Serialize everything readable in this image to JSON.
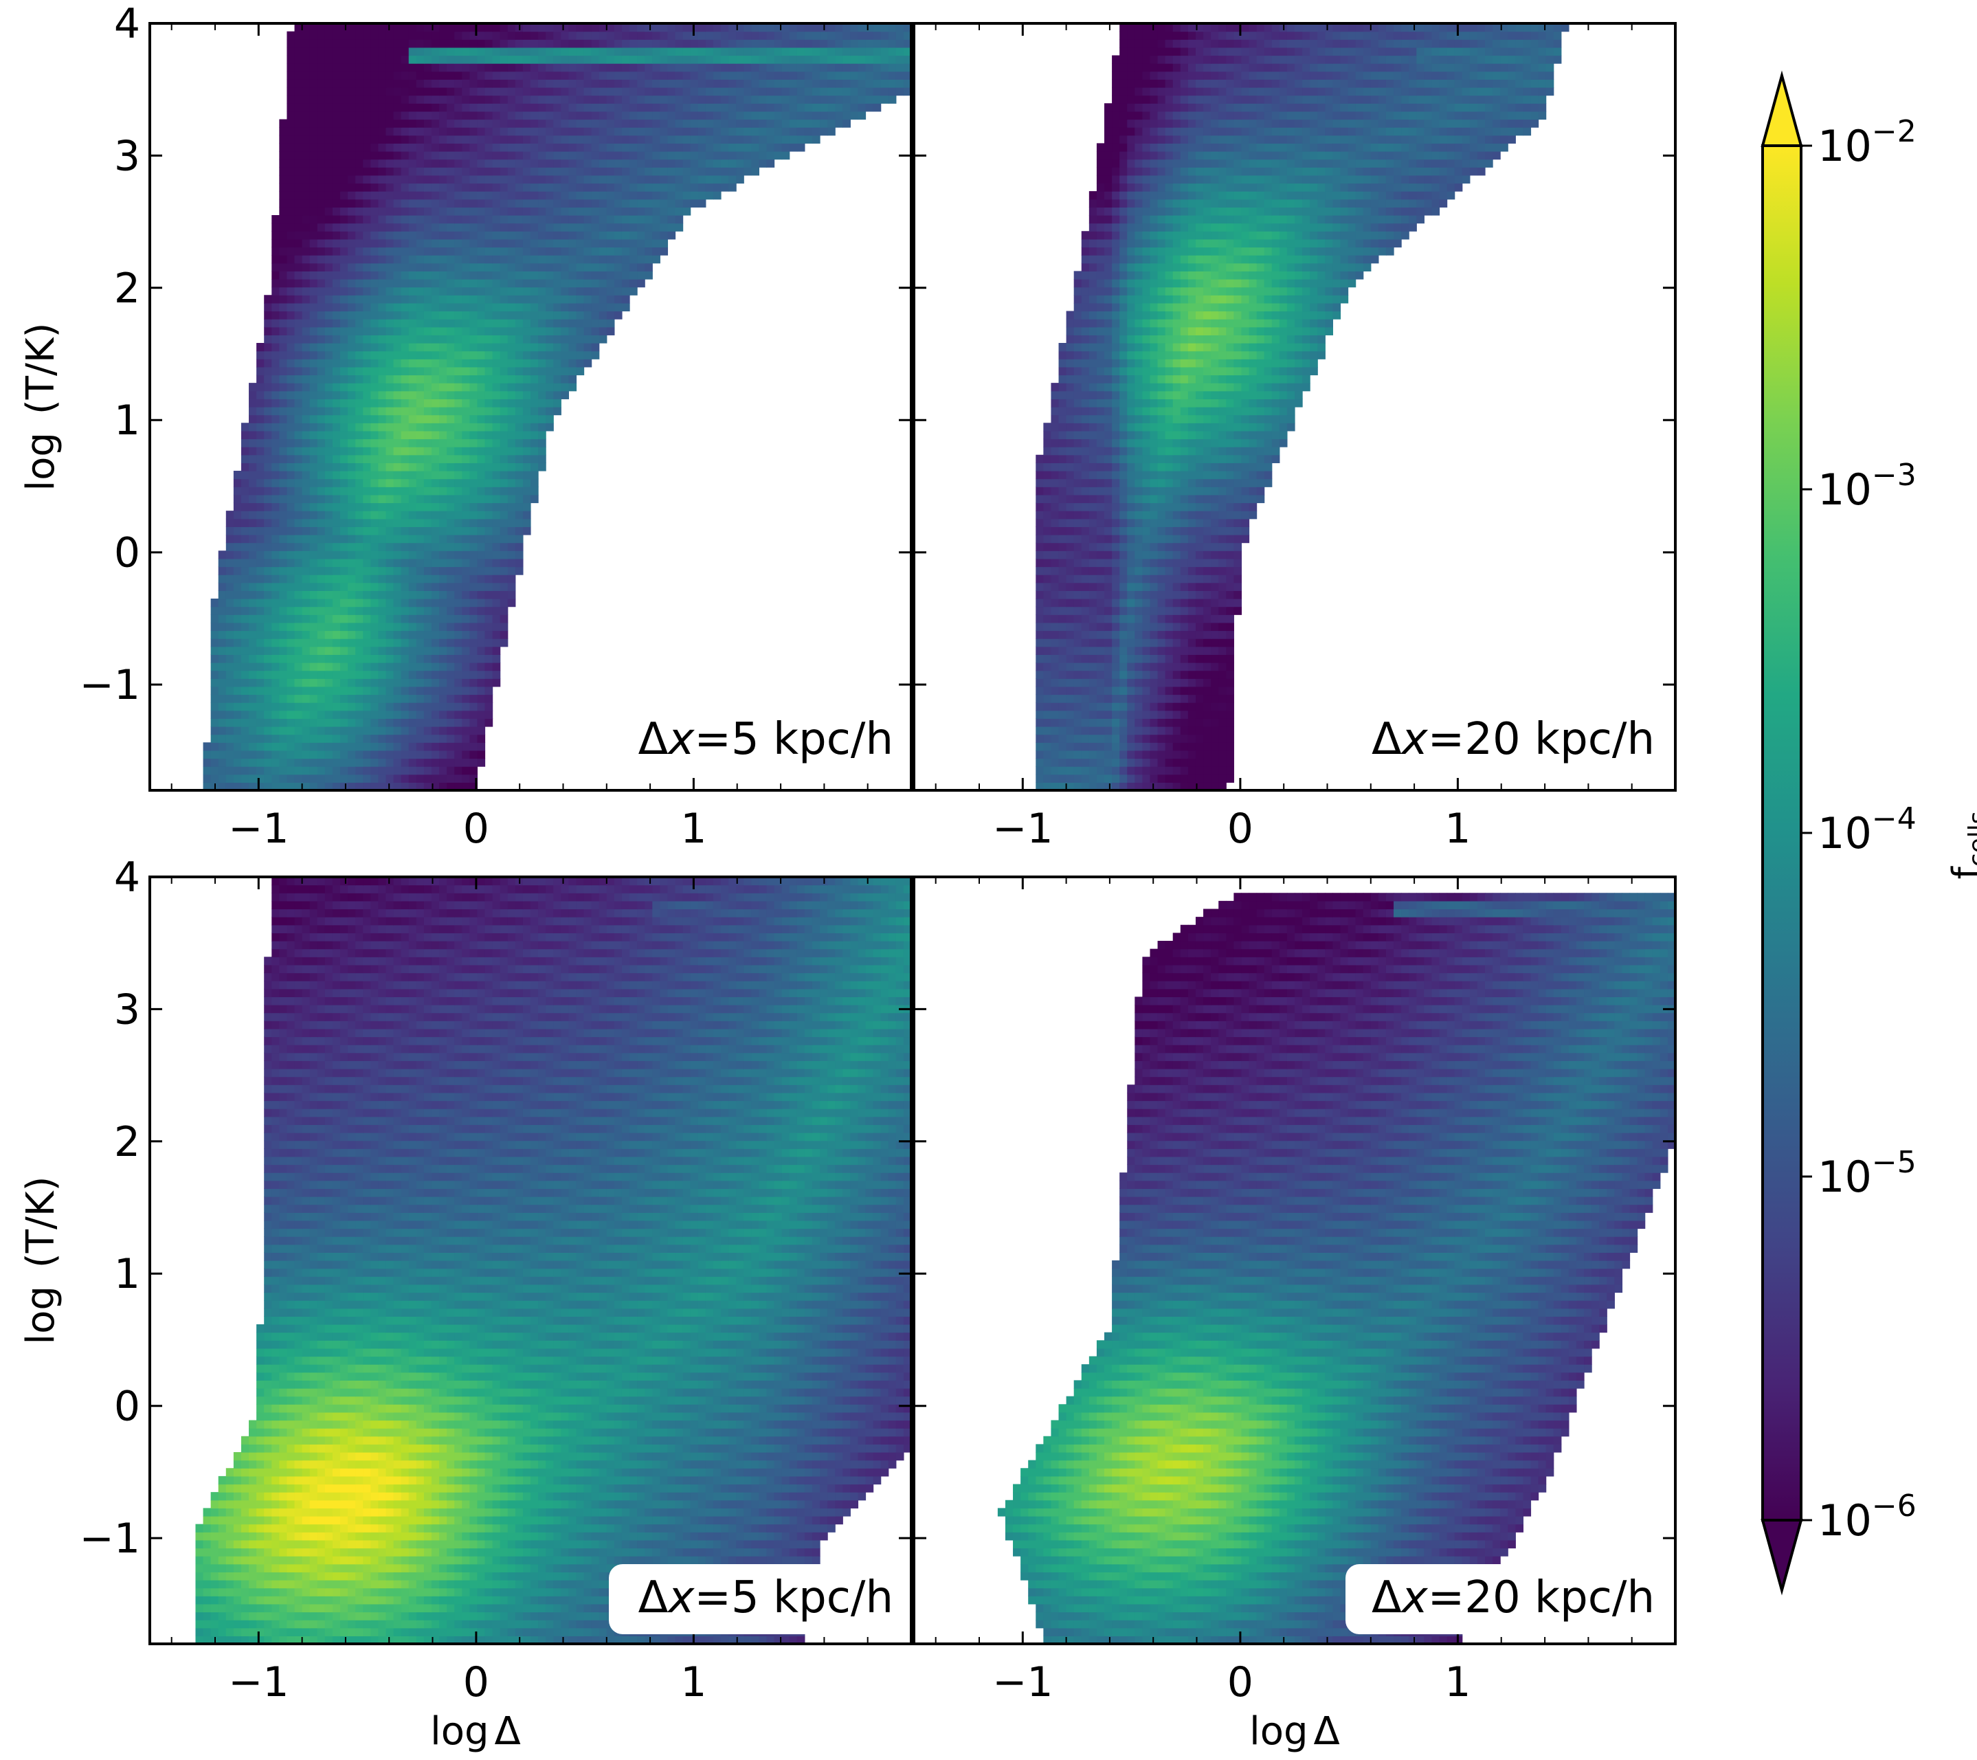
{
  "figure": {
    "y_axis_label_prefix": "log",
    "y_axis_label_unit": "(T/K)",
    "x_axis_label": "log Δ",
    "x_axis_label_parts": [
      "log",
      "Δ"
    ],
    "y_tick_labels": [
      "−1",
      "0",
      "1",
      "2",
      "3",
      "4"
    ],
    "x_tick_labels": [
      "−1",
      "0",
      "1"
    ]
  },
  "colorbar": {
    "label_main": "f",
    "label_sub": "cells",
    "colormap": "viridis",
    "scale": "log",
    "range": [
      1e-06,
      0.01
    ],
    "extend": "both",
    "tick_values": [
      1e-06,
      1e-05,
      0.0001,
      0.001,
      0.01
    ],
    "tick_labels": [
      {
        "base": "10",
        "exp": "−6"
      },
      {
        "base": "10",
        "exp": "−5"
      },
      {
        "base": "10",
        "exp": "−4"
      },
      {
        "base": "10",
        "exp": "−3"
      },
      {
        "base": "10",
        "exp": "−2"
      }
    ],
    "under_color": "#440154",
    "over_color": "#fde725"
  },
  "chart_data": [
    {
      "type": "heatmap",
      "panel": "top-left",
      "annotation": {
        "delta_symbol": "Δ",
        "var": "x",
        "text": "=5 kpc/h",
        "boxed": false
      },
      "xlabel": "",
      "ylabel": "log (T/K)",
      "xlim": [
        -1.5,
        2.0
      ],
      "ylim": [
        -1.8,
        4.0
      ],
      "x_ticks": [
        -1,
        0,
        1
      ],
      "y_ticks": [
        -1,
        0,
        1,
        2,
        3,
        4
      ],
      "ridge": [
        [
          -1.0,
          -1.8
        ],
        [
          -0.65,
          -0.6
        ],
        [
          -0.3,
          1.0
        ],
        [
          0.35,
          2.0
        ],
        [
          1.3,
          3.1
        ],
        [
          2.0,
          3.75
        ]
      ],
      "peaks": [
        {
          "x": -0.3,
          "y": 1.0,
          "log_f": -3.0
        },
        {
          "x": -0.65,
          "y": -0.7,
          "log_f": -3.3
        }
      ],
      "band": {
        "log_temperature": 3.75,
        "x_from": -0.3,
        "x_to": 2.0,
        "log_f": -4.1
      },
      "support": [
        [
          -1.25,
          -1.8
        ],
        [
          -1.2,
          -0.3
        ],
        [
          -0.95,
          2.0
        ],
        [
          -0.85,
          4.0
        ],
        [
          2.0,
          4.0
        ],
        [
          2.0,
          3.5
        ],
        [
          1.0,
          2.6
        ],
        [
          0.35,
          1.0
        ],
        [
          0.15,
          -0.5
        ],
        [
          0.0,
          -1.8
        ]
      ]
    },
    {
      "type": "heatmap",
      "panel": "top-right",
      "annotation": {
        "delta_symbol": "Δ",
        "var": "x",
        "text": "=20 kpc/h",
        "boxed": false
      },
      "xlabel": "",
      "ylabel": "",
      "xlim": [
        -1.5,
        2.0
      ],
      "ylim": [
        -1.8,
        4.0
      ],
      "x_ticks": [
        -1,
        0,
        1
      ],
      "y_ticks": [
        -1,
        0,
        1,
        2,
        3,
        4
      ],
      "ridge": [
        [
          -0.6,
          -1.8
        ],
        [
          -0.5,
          -0.3
        ],
        [
          -0.2,
          1.7
        ],
        [
          0.35,
          2.8
        ],
        [
          1.2,
          3.55
        ],
        [
          2.0,
          3.75
        ]
      ],
      "peaks": [
        {
          "x": -0.2,
          "y": 1.7,
          "log_f": -2.9
        }
      ],
      "band": {
        "log_temperature": 3.75,
        "x_from": 0.8,
        "x_to": 2.0,
        "log_f": -4.6
      },
      "support": [
        [
          -0.95,
          -1.8
        ],
        [
          -0.95,
          0.5
        ],
        [
          -0.7,
          2.5
        ],
        [
          -0.55,
          4.0
        ],
        [
          1.5,
          4.0
        ],
        [
          1.4,
          3.3
        ],
        [
          0.5,
          2.0
        ],
        [
          0.0,
          0.0
        ],
        [
          -0.05,
          -1.8
        ]
      ]
    },
    {
      "type": "heatmap",
      "panel": "bottom-left",
      "annotation": {
        "delta_symbol": "Δ",
        "var": "x",
        "text": "=5 kpc/h",
        "boxed": true
      },
      "xlabel": "log Δ",
      "ylabel": "log (T/K)",
      "xlim": [
        -1.5,
        2.0
      ],
      "ylim": [
        -1.8,
        4.0
      ],
      "x_ticks": [
        -1,
        0,
        1
      ],
      "y_ticks": [
        -1,
        0,
        1,
        2,
        3,
        4
      ],
      "ridge": [
        [
          -1.0,
          -1.0
        ],
        [
          -0.5,
          -0.6
        ],
        [
          0.0,
          -0.3
        ],
        [
          0.6,
          0.1
        ],
        [
          1.3,
          1.2
        ],
        [
          2.0,
          3.5
        ]
      ],
      "peaks": [
        {
          "x": -0.6,
          "y": -0.7,
          "log_f": -2.0
        }
      ],
      "band": {
        "log_temperature": 3.75,
        "x_from": 0.8,
        "x_to": 2.0,
        "log_f": -5.0
      },
      "support": [
        [
          -1.3,
          -1.8
        ],
        [
          -1.3,
          -1.0
        ],
        [
          -1.0,
          0.0
        ],
        [
          -0.95,
          4.0
        ],
        [
          2.0,
          4.0
        ],
        [
          2.0,
          -0.3
        ],
        [
          1.6,
          -1.0
        ],
        [
          1.5,
          -1.8
        ]
      ]
    },
    {
      "type": "heatmap",
      "panel": "bottom-right",
      "annotation": {
        "delta_symbol": "Δ",
        "var": "x",
        "text": "=20 kpc/h",
        "boxed": true
      },
      "xlabel": "log Δ",
      "ylabel": "",
      "xlim": [
        -1.5,
        2.0
      ],
      "ylim": [
        -1.8,
        4.0
      ],
      "x_ticks": [
        -1,
        0,
        1
      ],
      "y_ticks": [
        -1,
        0,
        1,
        2,
        3,
        4
      ],
      "ridge": [
        [
          -0.8,
          -0.8
        ],
        [
          -0.3,
          -0.4
        ],
        [
          0.0,
          -0.2
        ],
        [
          0.6,
          0.3
        ],
        [
          1.3,
          1.6
        ],
        [
          2.0,
          3.6
        ]
      ],
      "peaks": [
        {
          "x": -0.3,
          "y": -0.5,
          "log_f": -2.5
        }
      ],
      "band": {
        "log_temperature": 3.75,
        "x_from": 0.7,
        "x_to": 2.0,
        "log_f": -4.8
      },
      "support": [
        [
          -0.9,
          -1.8
        ],
        [
          -1.1,
          -0.8
        ],
        [
          -0.6,
          0.6
        ],
        [
          -0.45,
          3.4
        ],
        [
          0.0,
          3.9
        ],
        [
          2.0,
          3.9
        ],
        [
          2.0,
          2.0
        ],
        [
          1.4,
          -0.6
        ],
        [
          1.0,
          -1.8
        ]
      ]
    }
  ]
}
